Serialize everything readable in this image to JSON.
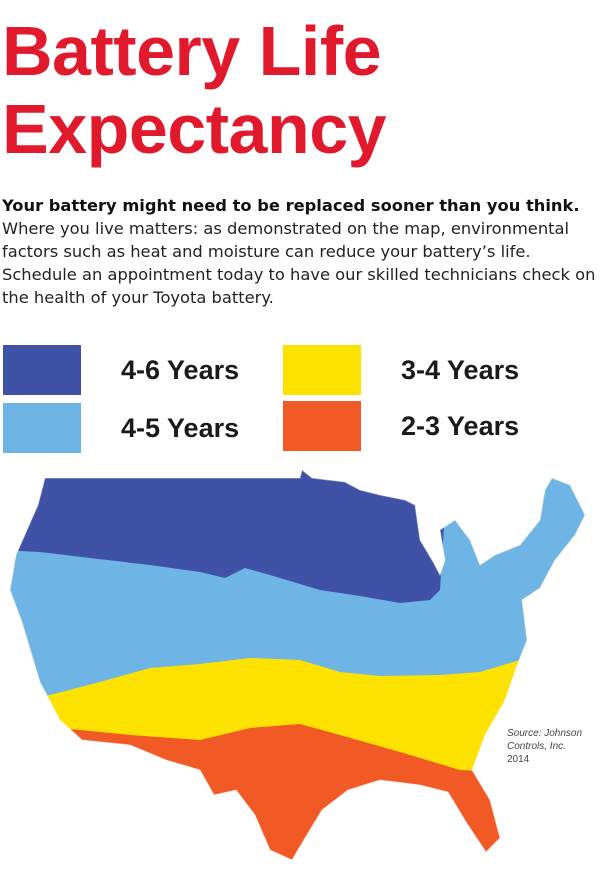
{
  "title": {
    "line1": "Battery Life",
    "line2": "Expectancy"
  },
  "intro": {
    "lead": "Your battery might need to be replaced sooner than you think.",
    "body": "Where you live matters: as demonstrated on the map, environmental factors such as heat and moisture can reduce your battery’s life. Schedule an appointment today to have our skilled technicians check on the health of your Toyota battery."
  },
  "legend": [
    {
      "label": "4-6 Years",
      "color": "#3f52a5"
    },
    {
      "label": "4-5 Years",
      "color": "#6eb4e4"
    },
    {
      "label": "3-4 Years",
      "color": "#fde200"
    },
    {
      "label": "2-3 Years",
      "color": "#f15a24"
    }
  ],
  "source": {
    "line1": "Source: Johnson",
    "line2": "Controls, Inc.",
    "line3": "2014"
  }
}
